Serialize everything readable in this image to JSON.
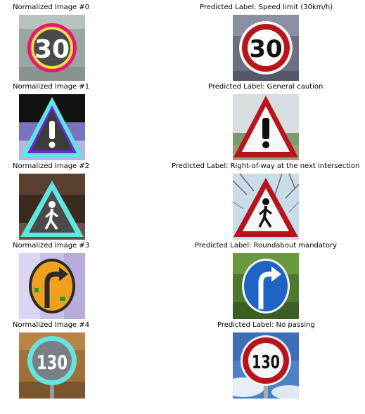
{
  "rows": [
    {
      "left_title": "Normalized Image #0",
      "right_title": "Predicted Label: Speed limit (30km/h)",
      "sign": "30"
    },
    {
      "left_title": "Normalized Image #1",
      "right_title": "Predicted Label: General caution"
    },
    {
      "left_title": "Normalized Image #2",
      "right_title": "Predicted Label: Right-of-way at the next intersection"
    },
    {
      "left_title": "Normalized Image #3",
      "right_title": "Predicted Label: Roundabout mandatory"
    },
    {
      "left_title": "Normalized Image #4",
      "right_title": "Predicted Label: No passing",
      "sign": "130"
    }
  ],
  "colors": {
    "normalized_ring_0": "#e8186c",
    "normalized_triangle": "#5ee6e0",
    "normalized_round_bg": "#f0a020",
    "normalized_ring_4": "#66e3dd",
    "sign_red": "#b8141c",
    "sign_blue": "#1f63c4"
  },
  "icons": [
    "speed-limit-30-sign",
    "general-caution-sign",
    "pedestrian-crossing-sign",
    "turn-right-blue-sign",
    "speed-limit-130-sign"
  ]
}
